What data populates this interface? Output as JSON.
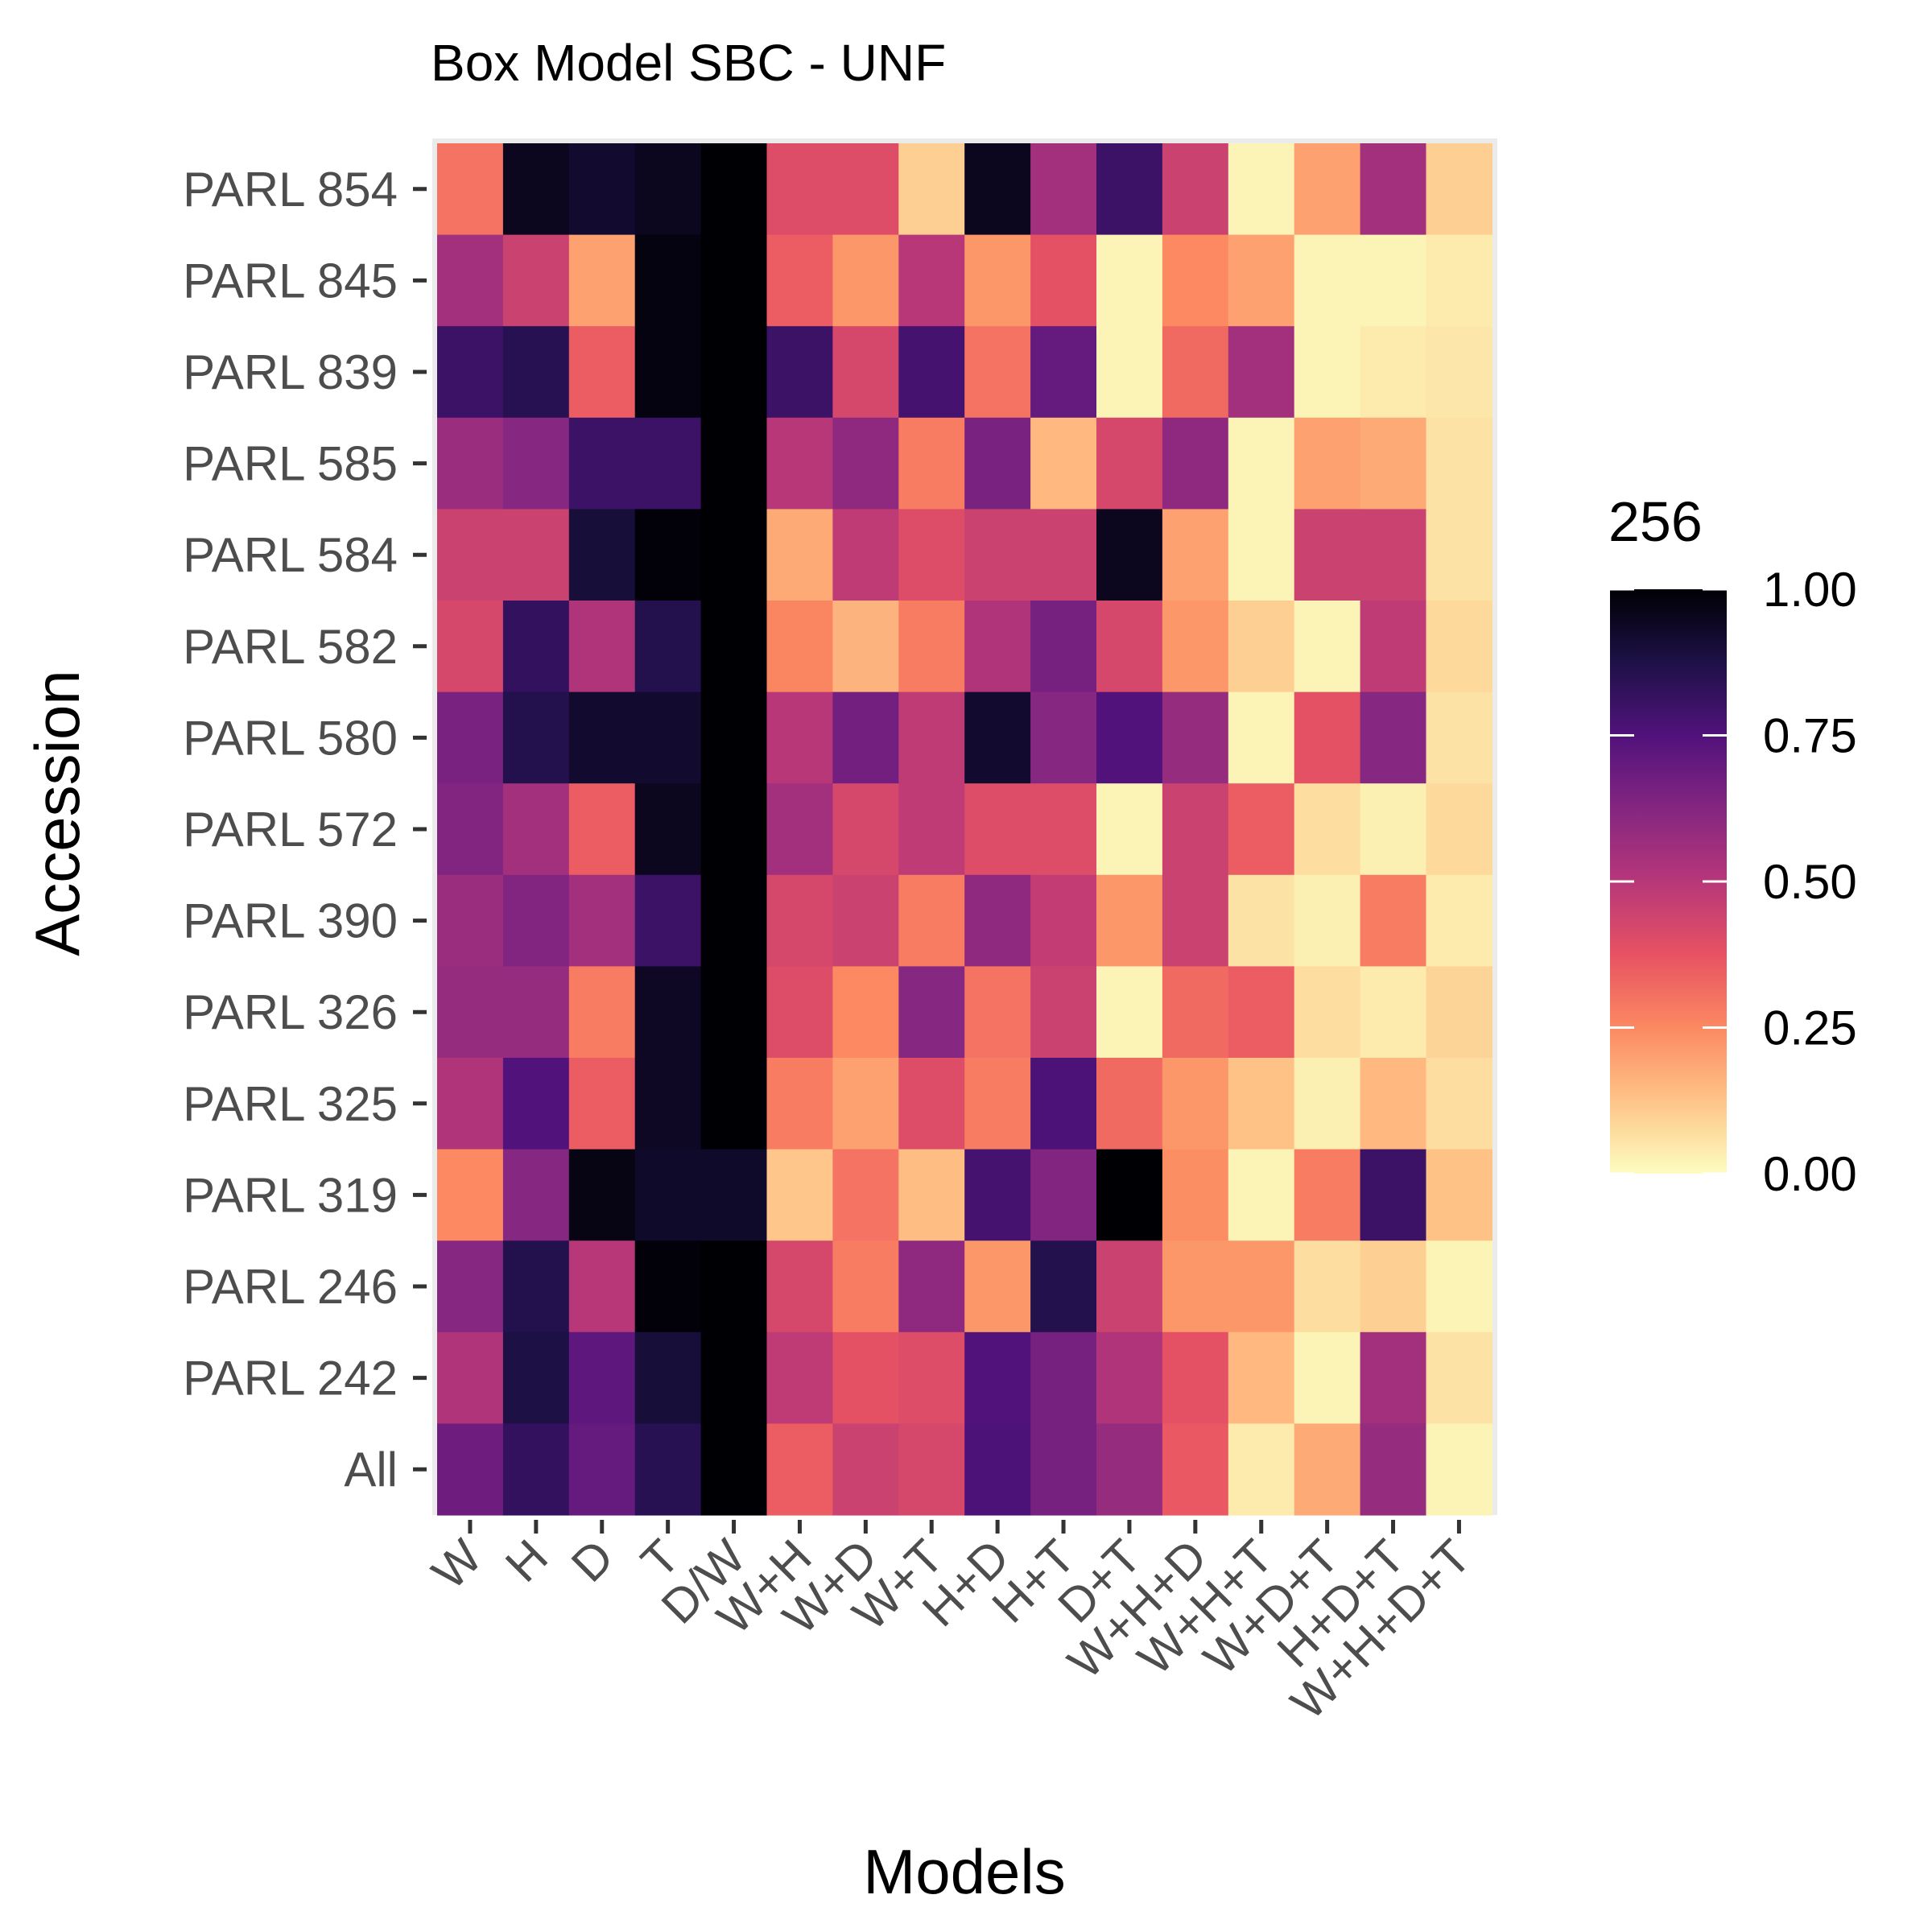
{
  "chart_data": {
    "type": "heatmap",
    "title": "Box Model SBC - UNF",
    "xlabel": "Models",
    "ylabel": "Accession",
    "x_categories": [
      "W",
      "H",
      "D",
      "T",
      "D/W",
      "W+H",
      "W+D",
      "W+T",
      "H+D",
      "H+T",
      "D+T",
      "W+H+D",
      "W+H+T",
      "W+D+T",
      "H+D+T",
      "W+H+D+T"
    ],
    "y_categories": [
      "PARL 854",
      "PARL 845",
      "PARL 839",
      "PARL 585",
      "PARL 584",
      "PARL 582",
      "PARL 580",
      "PARL 572",
      "PARL 390",
      "PARL 326",
      "PARL 325",
      "PARL 319",
      "PARL 246",
      "PARL 242",
      "All"
    ],
    "values": [
      [
        0.3,
        0.95,
        0.92,
        0.95,
        1.0,
        0.4,
        0.4,
        0.1,
        0.95,
        0.55,
        0.8,
        0.45,
        0.02,
        0.2,
        0.55,
        0.1
      ],
      [
        0.55,
        0.45,
        0.2,
        0.98,
        1.0,
        0.35,
        0.22,
        0.5,
        0.22,
        0.38,
        0.02,
        0.25,
        0.2,
        0.02,
        0.02,
        0.04
      ],
      [
        0.8,
        0.85,
        0.35,
        0.98,
        1.0,
        0.8,
        0.42,
        0.78,
        0.3,
        0.7,
        0.02,
        0.32,
        0.55,
        0.02,
        0.04,
        0.05
      ],
      [
        0.57,
        0.62,
        0.8,
        0.8,
        1.0,
        0.5,
        0.6,
        0.28,
        0.65,
        0.15,
        0.42,
        0.6,
        0.02,
        0.2,
        0.18,
        0.06
      ],
      [
        0.45,
        0.45,
        0.9,
        0.99,
        1.0,
        0.18,
        0.48,
        0.4,
        0.45,
        0.45,
        0.95,
        0.2,
        0.02,
        0.45,
        0.45,
        0.06
      ],
      [
        0.42,
        0.82,
        0.52,
        0.86,
        1.0,
        0.26,
        0.16,
        0.28,
        0.52,
        0.66,
        0.42,
        0.22,
        0.1,
        0.02,
        0.48,
        0.08
      ],
      [
        0.65,
        0.86,
        0.92,
        0.92,
        1.0,
        0.5,
        0.67,
        0.48,
        0.92,
        0.62,
        0.75,
        0.58,
        0.02,
        0.38,
        0.62,
        0.06
      ],
      [
        0.63,
        0.55,
        0.35,
        0.95,
        1.0,
        0.55,
        0.42,
        0.48,
        0.4,
        0.4,
        0.02,
        0.45,
        0.35,
        0.07,
        0.03,
        0.08
      ],
      [
        0.57,
        0.63,
        0.55,
        0.8,
        1.0,
        0.42,
        0.45,
        0.28,
        0.6,
        0.47,
        0.22,
        0.45,
        0.06,
        0.03,
        0.28,
        0.04
      ],
      [
        0.58,
        0.58,
        0.28,
        0.94,
        1.0,
        0.4,
        0.25,
        0.62,
        0.3,
        0.45,
        0.02,
        0.32,
        0.35,
        0.07,
        0.04,
        0.09
      ],
      [
        0.52,
        0.75,
        0.35,
        0.94,
        1.0,
        0.28,
        0.2,
        0.4,
        0.28,
        0.76,
        0.32,
        0.22,
        0.13,
        0.03,
        0.15,
        0.07
      ],
      [
        0.25,
        0.62,
        0.97,
        0.93,
        0.93,
        0.12,
        0.3,
        0.14,
        0.78,
        0.63,
        1.0,
        0.24,
        0.02,
        0.28,
        0.8,
        0.13
      ],
      [
        0.62,
        0.86,
        0.5,
        0.99,
        1.0,
        0.42,
        0.28,
        0.6,
        0.22,
        0.86,
        0.45,
        0.22,
        0.22,
        0.07,
        0.1,
        0.02
      ],
      [
        0.52,
        0.88,
        0.72,
        0.9,
        1.0,
        0.48,
        0.38,
        0.4,
        0.75,
        0.66,
        0.52,
        0.38,
        0.15,
        0.02,
        0.55,
        0.06
      ],
      [
        0.68,
        0.82,
        0.7,
        0.85,
        1.0,
        0.35,
        0.45,
        0.42,
        0.76,
        0.66,
        0.58,
        0.36,
        0.04,
        0.18,
        0.58,
        0.02
      ]
    ],
    "legend": {
      "title": "256",
      "ticks": [
        "1.00",
        "0.75",
        "0.50",
        "0.25",
        "0.00"
      ],
      "tick_values": [
        1.0,
        0.75,
        0.5,
        0.25,
        0.0
      ],
      "range": [
        0,
        1
      ],
      "placement": "right"
    },
    "colormap": "magma",
    "panel_background": "#ebebeb",
    "grid": true
  }
}
